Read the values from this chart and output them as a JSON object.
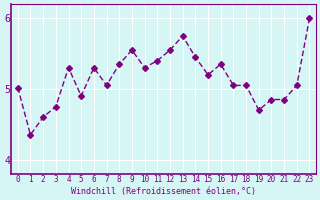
{
  "x": [
    0,
    1,
    2,
    3,
    4,
    5,
    6,
    7,
    8,
    9,
    10,
    11,
    12,
    13,
    14,
    15,
    16,
    17,
    18,
    19,
    20,
    21,
    22,
    23
  ],
  "y": [
    5.02,
    4.35,
    4.6,
    4.75,
    5.3,
    4.9,
    5.3,
    5.05,
    5.35,
    5.55,
    5.3,
    5.4,
    5.55,
    5.75,
    5.45,
    5.2,
    5.35,
    5.05,
    5.05,
    4.7,
    4.85,
    4.85,
    5.05,
    6.0
  ],
  "line_color": "#800080",
  "marker": "D",
  "marker_size": 3,
  "bg_color": "#d6f5f5",
  "grid_color": "#ffffff",
  "xlabel": "Windchill (Refroidissement éolien,°C)",
  "ylim": [
    3.8,
    6.2
  ],
  "xlim": [
    -0.5,
    23.5
  ],
  "yticks": [
    4,
    5,
    6
  ],
  "xticks": [
    0,
    1,
    2,
    3,
    4,
    5,
    6,
    7,
    8,
    9,
    10,
    11,
    12,
    13,
    14,
    15,
    16,
    17,
    18,
    19,
    20,
    21,
    22,
    23
  ]
}
